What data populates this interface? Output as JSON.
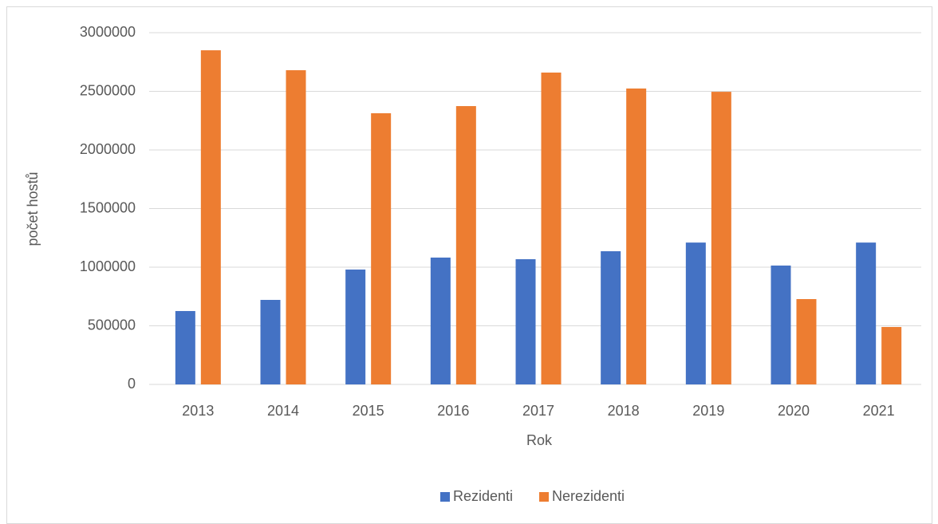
{
  "chart_data": {
    "type": "bar",
    "x_label": "Rok",
    "y_label": "počet hostů",
    "categories": [
      "2013",
      "2014",
      "2015",
      "2016",
      "2017",
      "2018",
      "2019",
      "2020",
      "2021"
    ],
    "series": [
      {
        "name": "Rezidenti",
        "color": "#4472c4",
        "values": [
          626000,
          721000,
          980000,
          1082000,
          1068000,
          1136000,
          1210000,
          1014000,
          1210000
        ]
      },
      {
        "name": "Nerezidenti",
        "color": "#ed7d31",
        "values": [
          2850000,
          2680000,
          2313000,
          2374000,
          2660000,
          2524000,
          2496000,
          728000,
          490000
        ]
      }
    ],
    "ylim": [
      0,
      3000000
    ],
    "yticks": [
      0,
      500000,
      1000000,
      1500000,
      2000000,
      2500000,
      3000000
    ],
    "grid": true,
    "legend": "bottom"
  }
}
